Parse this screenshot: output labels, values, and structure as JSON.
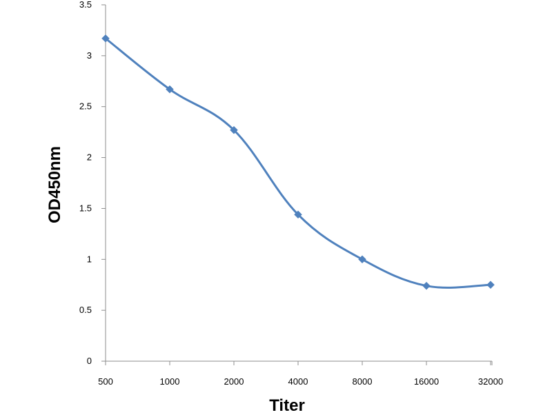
{
  "chart_data": {
    "type": "line",
    "title": "",
    "xlabel": "Titer",
    "ylabel": "OD450nm",
    "categories": [
      "500",
      "1000",
      "2000",
      "4000",
      "8000",
      "16000",
      "32000"
    ],
    "series": [
      {
        "values": [
          3.17,
          2.67,
          2.27,
          1.44,
          1.0,
          0.74,
          0.75
        ],
        "color": "#4f81bd",
        "marker": "diamond",
        "smooth": true
      }
    ],
    "yticks": [
      "0",
      "0.5",
      "1",
      "1.5",
      "2",
      "2.5",
      "3",
      "3.5"
    ],
    "ylim": [
      0,
      3.5
    ],
    "grid": false,
    "legend": "none"
  }
}
